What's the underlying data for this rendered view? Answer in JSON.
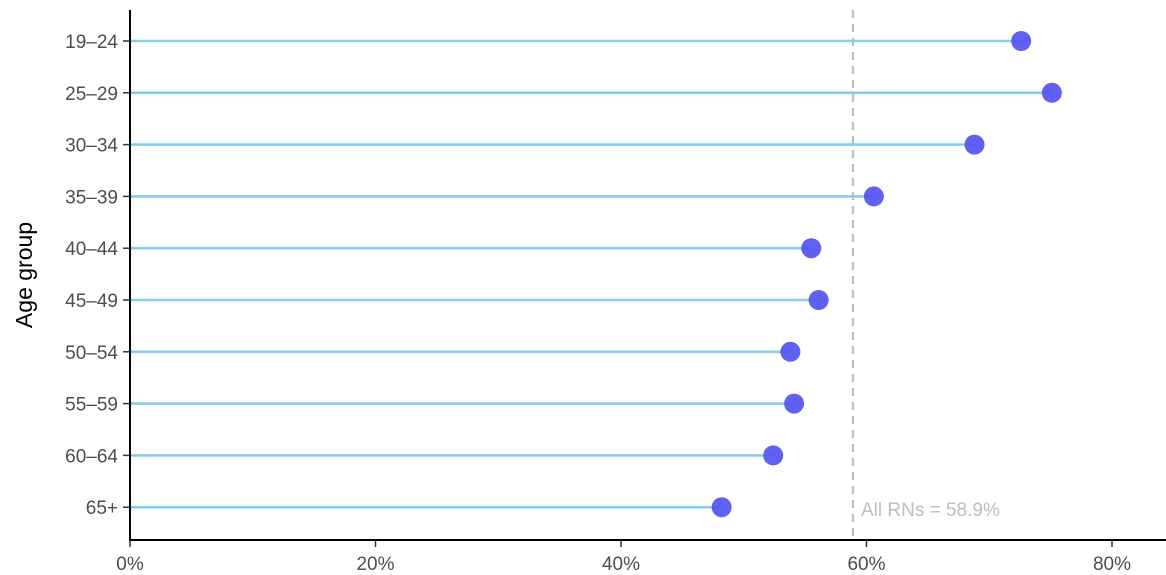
{
  "chart_data": {
    "type": "lollipop",
    "orientation": "horizontal",
    "ylabel": "Age group",
    "xlabel": "",
    "xlim": [
      0,
      0.84
    ],
    "x_ticks": [
      0,
      0.2,
      0.4,
      0.6,
      0.8
    ],
    "x_tick_labels": [
      "0%",
      "20%",
      "40%",
      "60%",
      "80%"
    ],
    "categories": [
      "19–24",
      "25–29",
      "30–34",
      "35–39",
      "40–44",
      "45–49",
      "50–54",
      "55–59",
      "60–64",
      "65+"
    ],
    "values": [
      0.726,
      0.751,
      0.688,
      0.606,
      0.555,
      0.561,
      0.538,
      0.541,
      0.524,
      0.482
    ],
    "reference_line": {
      "value": 0.589,
      "label": "All RNs = 58.9%",
      "style": "dashed"
    },
    "grid": false,
    "colors": {
      "stem": "#87CEEB",
      "point": "#5050F0",
      "reference": "#bdbdbd",
      "axis": "#000000",
      "tick_text": "#4d4d4d"
    }
  }
}
